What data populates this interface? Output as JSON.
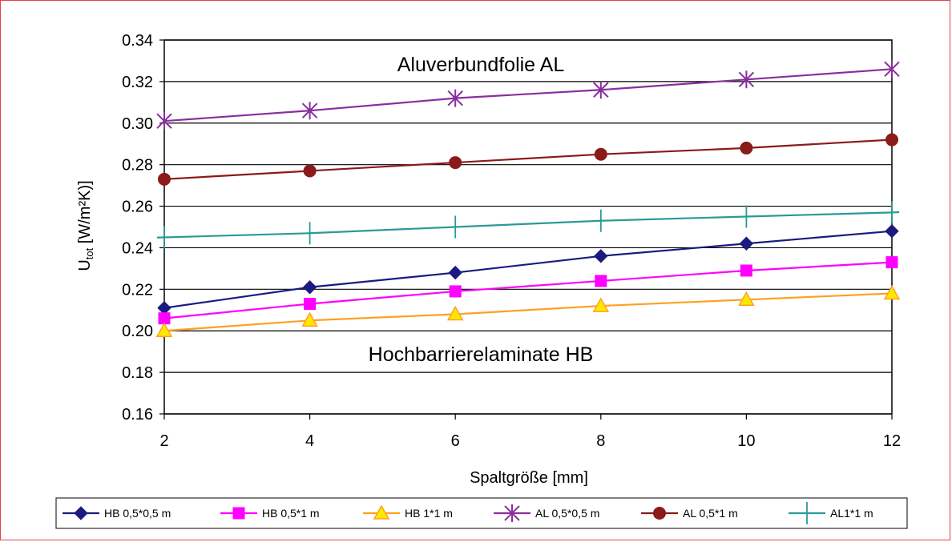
{
  "chart_data": {
    "type": "line",
    "xlabel": "Spaltgröße [mm]",
    "ylabel_main": "U",
    "ylabel_sub": "tot",
    "ylabel_rest": " [W/m²K)]",
    "x": [
      2,
      4,
      6,
      8,
      10,
      12
    ],
    "xlim": [
      2,
      12
    ],
    "xticks": [
      "2",
      "4",
      "6",
      "8",
      "10",
      "12"
    ],
    "ylim": [
      0.16,
      0.34
    ],
    "yticks": [
      "0.16",
      "0.18",
      "0.20",
      "0.22",
      "0.24",
      "0.26",
      "0.28",
      "0.30",
      "0.32",
      "0.34"
    ],
    "grid": "horizontal",
    "legend_position": "bottom",
    "annotations": {
      "top": "Aluverbundfolie AL",
      "bottom": "Hochbarrierelaminate HB"
    },
    "series": [
      {
        "name": "HB 0,5*0,5 m",
        "color": "#1a1a80",
        "marker": "diamond",
        "values": [
          0.211,
          0.221,
          0.228,
          0.236,
          0.242,
          0.248
        ]
      },
      {
        "name": "HB 0,5*1 m",
        "color": "#ff00ff",
        "marker": "square",
        "values": [
          0.206,
          0.213,
          0.219,
          0.224,
          0.229,
          0.233
        ]
      },
      {
        "name": "HB 1*1 m",
        "color": "#ffa020",
        "marker": "triangle",
        "marker_fill": "#ffe800",
        "values": [
          0.2,
          0.205,
          0.208,
          0.212,
          0.215,
          0.218
        ]
      },
      {
        "name": "AL 0,5*0,5 m",
        "color": "#8a2e9e",
        "marker": "star",
        "values": [
          0.301,
          0.306,
          0.312,
          0.316,
          0.321,
          0.326
        ]
      },
      {
        "name": "AL 0,5*1 m",
        "color": "#8b1a1a",
        "marker": "circle",
        "values": [
          0.273,
          0.277,
          0.281,
          0.285,
          0.288,
          0.292
        ]
      },
      {
        "name": "AL1*1 m",
        "color": "#2a9a96",
        "marker": "plus",
        "values": [
          0.245,
          0.247,
          0.25,
          0.253,
          0.255,
          0.257
        ]
      }
    ]
  }
}
